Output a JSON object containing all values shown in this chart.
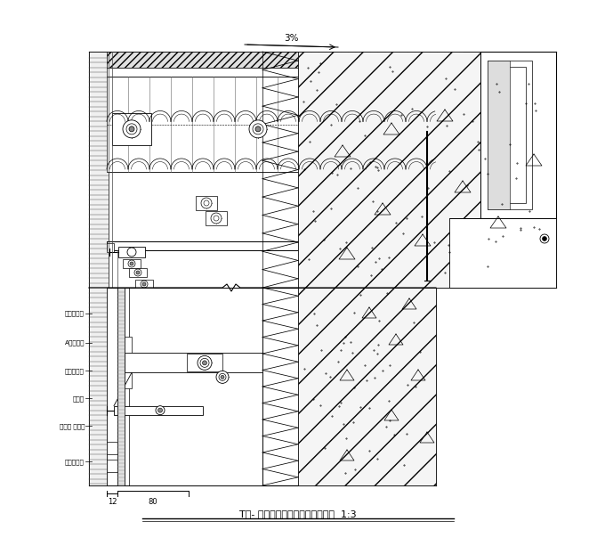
{
  "title": "T型- 陶瓷幕墙与窗上推边收口节点  1:3",
  "bg_color": "#ffffff",
  "line_color": "#000000",
  "labels_left": [
    "幕墙横龙骨",
    "A型墙固件",
    "平头钢螺旋",
    "密封胶",
    "不锈钢 型挂件",
    "幕墙竖龙骨"
  ],
  "dim_labels": [
    "12",
    "80"
  ],
  "slope_label": "3%"
}
